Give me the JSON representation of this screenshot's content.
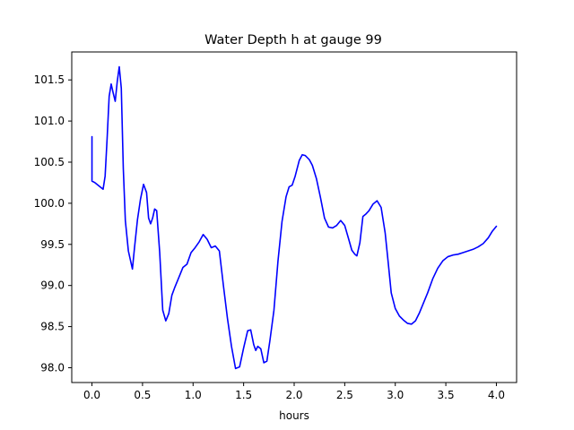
{
  "chart_data": {
    "type": "line",
    "title": "Water Depth h at gauge 99",
    "xlabel": "hours",
    "ylabel": "",
    "xlim": [
      -0.2,
      4.2
    ],
    "ylim": [
      97.82,
      101.84
    ],
    "xticks": [
      0.0,
      0.5,
      1.0,
      1.5,
      2.0,
      2.5,
      3.0,
      3.5,
      4.0
    ],
    "xtick_labels": [
      "0.0",
      "0.5",
      "1.0",
      "1.5",
      "2.0",
      "2.5",
      "3.0",
      "3.5",
      "4.0"
    ],
    "yticks": [
      98.0,
      98.5,
      99.0,
      99.5,
      100.0,
      100.5,
      101.0,
      101.5
    ],
    "ytick_labels": [
      "98.0",
      "98.5",
      "99.0",
      "99.5",
      "100.0",
      "100.5",
      "101.0",
      "101.5"
    ],
    "grid": false,
    "series": [
      {
        "color": "#0000ff",
        "x": [
          0.0,
          0.0,
          0.03,
          0.07,
          0.11,
          0.13,
          0.15,
          0.17,
          0.19,
          0.21,
          0.23,
          0.25,
          0.27,
          0.29,
          0.31,
          0.33,
          0.36,
          0.4,
          0.42,
          0.45,
          0.48,
          0.51,
          0.54,
          0.56,
          0.58,
          0.6,
          0.62,
          0.64,
          0.67,
          0.7,
          0.73,
          0.76,
          0.79,
          0.82,
          0.86,
          0.9,
          0.94,
          0.98,
          1.02,
          1.06,
          1.1,
          1.14,
          1.18,
          1.22,
          1.26,
          1.3,
          1.34,
          1.38,
          1.42,
          1.46,
          1.5,
          1.54,
          1.57,
          1.6,
          1.62,
          1.64,
          1.67,
          1.7,
          1.73,
          1.76,
          1.8,
          1.84,
          1.88,
          1.92,
          1.95,
          1.98,
          2.01,
          2.05,
          2.08,
          2.11,
          2.15,
          2.18,
          2.22,
          2.26,
          2.3,
          2.34,
          2.38,
          2.42,
          2.46,
          2.5,
          2.54,
          2.57,
          2.6,
          2.62,
          2.65,
          2.68,
          2.71,
          2.74,
          2.78,
          2.82,
          2.86,
          2.9,
          2.93,
          2.96,
          3.0,
          3.04,
          3.08,
          3.12,
          3.16,
          3.2,
          3.24,
          3.28,
          3.32,
          3.37,
          3.42,
          3.47,
          3.52,
          3.57,
          3.62,
          3.67,
          3.72,
          3.77,
          3.82,
          3.87,
          3.92,
          3.96,
          4.0
        ],
        "y": [
          100.81,
          100.27,
          100.25,
          100.21,
          100.17,
          100.33,
          100.79,
          101.3,
          101.45,
          101.34,
          101.24,
          101.48,
          101.66,
          101.4,
          100.42,
          99.79,
          99.42,
          99.2,
          99.45,
          99.8,
          100.05,
          100.23,
          100.13,
          99.82,
          99.75,
          99.82,
          99.93,
          99.91,
          99.4,
          98.7,
          98.57,
          98.66,
          98.88,
          98.98,
          99.1,
          99.22,
          99.26,
          99.4,
          99.46,
          99.53,
          99.62,
          99.56,
          99.46,
          99.48,
          99.42,
          99.0,
          98.6,
          98.26,
          97.99,
          98.01,
          98.24,
          98.45,
          98.46,
          98.28,
          98.21,
          98.26,
          98.23,
          98.06,
          98.08,
          98.33,
          98.7,
          99.3,
          99.78,
          100.08,
          100.2,
          100.22,
          100.33,
          100.52,
          100.59,
          100.58,
          100.53,
          100.46,
          100.3,
          100.07,
          99.82,
          99.71,
          99.7,
          99.73,
          99.79,
          99.73,
          99.56,
          99.43,
          99.38,
          99.36,
          99.52,
          99.84,
          99.87,
          99.91,
          99.99,
          100.03,
          99.95,
          99.64,
          99.28,
          98.91,
          98.72,
          98.63,
          98.58,
          98.54,
          98.53,
          98.57,
          98.67,
          98.79,
          98.91,
          99.08,
          99.21,
          99.3,
          99.35,
          99.37,
          99.38,
          99.4,
          99.42,
          99.44,
          99.47,
          99.51,
          99.58,
          99.66,
          99.72
        ]
      }
    ]
  }
}
